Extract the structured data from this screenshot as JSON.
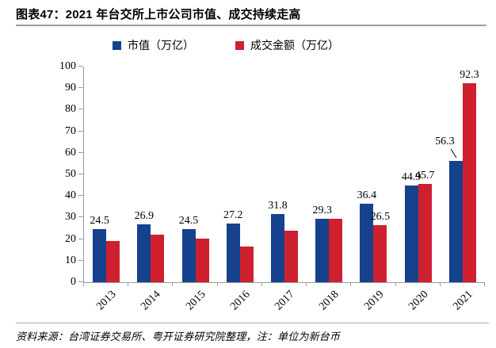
{
  "header": {
    "title": "图表47：2021 年台交所上市公司市值、成交持续走高"
  },
  "footer": {
    "source_note": "资料来源：台湾证券交易所、粤开证券研究院整理，注：单位为新台币"
  },
  "colors": {
    "axis": "#9b9b9b",
    "market_cap": "#16418C",
    "turnover": "#CE202E"
  },
  "chart_data": {
    "type": "bar",
    "title": "2021 年台交所上市公司市值、成交持续走高",
    "categories": [
      "2013",
      "2014",
      "2015",
      "2016",
      "2017",
      "2018",
      "2019",
      "2020",
      "2021"
    ],
    "series": [
      {
        "id": "market-cap",
        "name": "市值（万亿）",
        "color": "#16418C",
        "values": [
          24.5,
          26.9,
          24.5,
          27.2,
          31.8,
          29.3,
          36.4,
          44.9,
          56.3
        ],
        "labels": [
          "24.5",
          "26.9",
          "24.5",
          "27.2",
          "31.8",
          "29.3",
          "36.4",
          "44.9",
          "56.3"
        ]
      },
      {
        "id": "turnover",
        "name": "成交金额（万亿）",
        "color": "#CE202E",
        "values": [
          19.0,
          22.0,
          20.2,
          16.5,
          23.8,
          29.5,
          26.5,
          45.7,
          92.3
        ],
        "labels": [
          null,
          null,
          null,
          null,
          null,
          null,
          "26.5",
          "45.7",
          "92.3"
        ]
      }
    ],
    "ylim": [
      0,
      100
    ],
    "yticks": [
      0,
      10,
      20,
      30,
      40,
      50,
      60,
      70,
      80,
      90,
      100
    ],
    "ytick_labels": [
      "0",
      "10",
      "20",
      "30",
      "40",
      "50",
      "60",
      "70",
      "80",
      "90",
      "100"
    ],
    "grid": false,
    "legend_position": "top",
    "label_callout": {
      "series": 0,
      "index": 8
    }
  }
}
